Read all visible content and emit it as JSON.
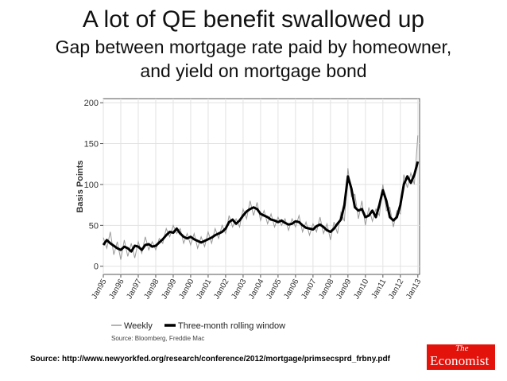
{
  "header": {
    "title": "A lot of QE benefit swallowed up",
    "subtitle_line1": "Gap between mortgage rate paid by homeowner,",
    "subtitle_line2": "and yield on mortgage bond"
  },
  "footer": {
    "source": "Source: http://www.newyorkfed.org/research/conference/2012/mortgage/primsecsprd_frbny.pdf",
    "logo_the": "The",
    "logo_name": "Economist"
  },
  "colors": {
    "weekly": "#9a9a9a",
    "rolling": "#000000",
    "logo": "#e3120b"
  },
  "chart_data": {
    "type": "line",
    "ylabel": "Basis Points",
    "xlabel": "",
    "ylim": [
      -10,
      205
    ],
    "yticks": [
      0,
      50,
      100,
      150,
      200
    ],
    "xlim": [
      1995,
      2013.1
    ],
    "xticks": [
      "Jan95",
      "Jan96",
      "Jan97",
      "Jan98",
      "Jan99",
      "Jan00",
      "Jan01",
      "Jan02",
      "Jan03",
      "Jan04",
      "Jan05",
      "Jan06",
      "Jan07",
      "Jan08",
      "Jan09",
      "Jan10",
      "Jan11",
      "Jan12",
      "Jan13"
    ],
    "grid": true,
    "legend_position": "bottom-left",
    "source_note": "Source: Bloomberg, Freddie Mac",
    "series": [
      {
        "name": "Three-month rolling window",
        "x": [
          1995.0,
          1995.2,
          1995.4,
          1995.6,
          1995.8,
          1996.0,
          1996.2,
          1996.4,
          1996.6,
          1996.8,
          1997.0,
          1997.2,
          1997.4,
          1997.6,
          1997.8,
          1998.0,
          1998.2,
          1998.4,
          1998.6,
          1998.8,
          1999.0,
          1999.2,
          1999.4,
          1999.6,
          1999.8,
          2000.0,
          2000.2,
          2000.4,
          2000.6,
          2000.8,
          2001.0,
          2001.2,
          2001.4,
          2001.6,
          2001.8,
          2002.0,
          2002.2,
          2002.4,
          2002.6,
          2002.8,
          2003.0,
          2003.2,
          2003.4,
          2003.6,
          2003.8,
          2004.0,
          2004.2,
          2004.4,
          2004.6,
          2004.8,
          2005.0,
          2005.2,
          2005.4,
          2005.6,
          2005.8,
          2006.0,
          2006.2,
          2006.4,
          2006.6,
          2006.8,
          2007.0,
          2007.2,
          2007.4,
          2007.6,
          2007.8,
          2008.0,
          2008.2,
          2008.4,
          2008.6,
          2008.8,
          2009.0,
          2009.2,
          2009.4,
          2009.6,
          2009.8,
          2010.0,
          2010.2,
          2010.4,
          2010.6,
          2010.8,
          2011.0,
          2011.2,
          2011.4,
          2011.6,
          2011.8,
          2012.0,
          2012.2,
          2012.4,
          2012.6,
          2012.8,
          2013.0
        ],
        "y": [
          26,
          32,
          28,
          25,
          22,
          20,
          24,
          22,
          18,
          25,
          24,
          20,
          26,
          27,
          24,
          25,
          29,
          33,
          38,
          42,
          41,
          46,
          40,
          36,
          34,
          36,
          33,
          31,
          29,
          31,
          33,
          35,
          38,
          40,
          42,
          46,
          54,
          57,
          52,
          56,
          62,
          67,
          70,
          72,
          70,
          64,
          62,
          60,
          57,
          56,
          54,
          56,
          53,
          51,
          52,
          55,
          54,
          50,
          47,
          46,
          45,
          49,
          51,
          48,
          44,
          42,
          46,
          52,
          57,
          75,
          110,
          95,
          72,
          68,
          70,
          60,
          62,
          68,
          60,
          75,
          93,
          80,
          60,
          56,
          60,
          75,
          100,
          110,
          102,
          112,
          128
        ]
      },
      {
        "name": "Weekly",
        "x": [
          1995.0,
          1995.2,
          1995.4,
          1995.6,
          1995.8,
          1996.0,
          1996.2,
          1996.4,
          1996.6,
          1996.8,
          1997.0,
          1997.2,
          1997.4,
          1997.6,
          1997.8,
          1998.0,
          1998.2,
          1998.4,
          1998.6,
          1998.8,
          1999.0,
          1999.2,
          1999.4,
          1999.6,
          1999.8,
          2000.0,
          2000.2,
          2000.4,
          2000.6,
          2000.8,
          2001.0,
          2001.2,
          2001.4,
          2001.6,
          2001.8,
          2002.0,
          2002.2,
          2002.4,
          2002.6,
          2002.8,
          2003.0,
          2003.2,
          2003.4,
          2003.6,
          2003.8,
          2004.0,
          2004.2,
          2004.4,
          2004.6,
          2004.8,
          2005.0,
          2005.2,
          2005.4,
          2005.6,
          2005.8,
          2006.0,
          2006.2,
          2006.4,
          2006.6,
          2006.8,
          2007.0,
          2007.2,
          2007.4,
          2007.6,
          2007.8,
          2008.0,
          2008.2,
          2008.4,
          2008.6,
          2008.8,
          2009.0,
          2009.2,
          2009.4,
          2009.6,
          2009.8,
          2010.0,
          2010.2,
          2010.4,
          2010.6,
          2010.8,
          2011.0,
          2011.2,
          2011.4,
          2011.6,
          2011.8,
          2012.0,
          2012.2,
          2012.4,
          2012.6,
          2012.8,
          2013.0
        ],
        "y": [
          35,
          22,
          42,
          14,
          30,
          8,
          32,
          12,
          28,
          10,
          30,
          16,
          36,
          20,
          30,
          20,
          34,
          28,
          46,
          36,
          50,
          40,
          46,
          28,
          40,
          26,
          40,
          22,
          36,
          24,
          42,
          28,
          46,
          34,
          50,
          40,
          62,
          48,
          58,
          48,
          70,
          58,
          80,
          62,
          78,
          56,
          68,
          52,
          64,
          48,
          60,
          50,
          58,
          44,
          58,
          48,
          62,
          42,
          54,
          38,
          52,
          42,
          60,
          40,
          52,
          32,
          54,
          40,
          66,
          55,
          120,
          85,
          88,
          58,
          80,
          50,
          72,
          55,
          70,
          62,
          100,
          68,
          72,
          48,
          68,
          64,
          112,
          96,
          114,
          100,
          160
        ]
      }
    ]
  }
}
